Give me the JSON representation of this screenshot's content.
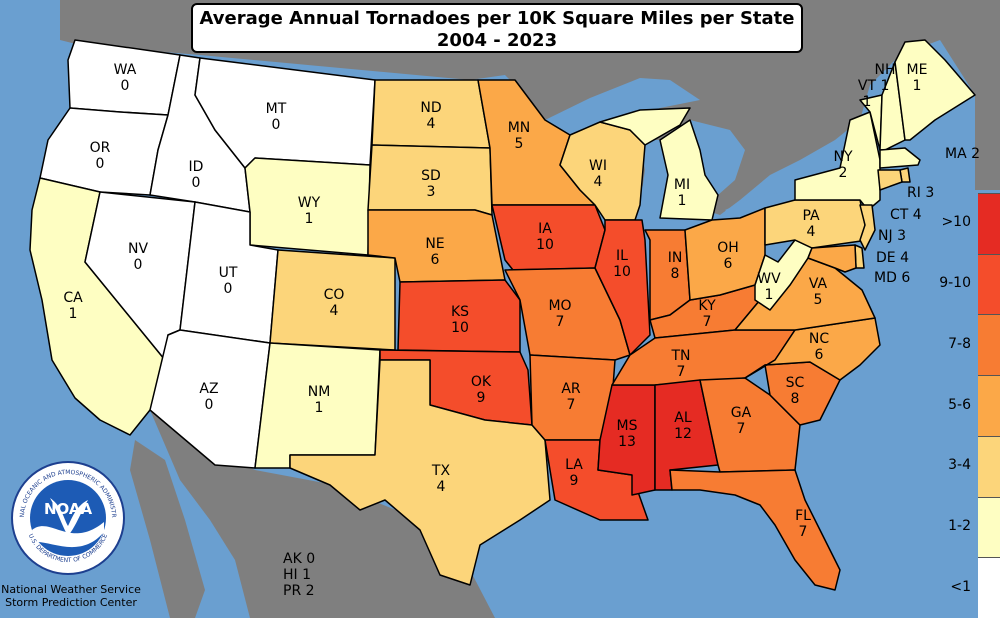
{
  "title": {
    "line1": "Average Annual Tornadoes per 10K Square Miles per State",
    "line2": "2004 - 2023"
  },
  "legend": [
    {
      "label": ">10",
      "color": "#e52b23"
    },
    {
      "label": "9-10",
      "color": "#f44d2b"
    },
    {
      "label": "7-8",
      "color": "#f77c33"
    },
    {
      "label": "5-6",
      "color": "#fba848"
    },
    {
      "label": "3-4",
      "color": "#fcd57a"
    },
    {
      "label": "1-2",
      "color": "#fefec2"
    },
    {
      "label": "<1",
      "color": "#ffffff"
    }
  ],
  "states": {
    "WA": {
      "abbr": "WA",
      "value": "0"
    },
    "OR": {
      "abbr": "OR",
      "value": "0"
    },
    "CA": {
      "abbr": "CA",
      "value": "1"
    },
    "ID": {
      "abbr": "ID",
      "value": "0"
    },
    "NV": {
      "abbr": "NV",
      "value": "0"
    },
    "MT": {
      "abbr": "MT",
      "value": "0"
    },
    "WY": {
      "abbr": "WY",
      "value": "1"
    },
    "UT": {
      "abbr": "UT",
      "value": "0"
    },
    "AZ": {
      "abbr": "AZ",
      "value": "0"
    },
    "CO": {
      "abbr": "CO",
      "value": "4"
    },
    "NM": {
      "abbr": "NM",
      "value": "1"
    },
    "ND": {
      "abbr": "ND",
      "value": "4"
    },
    "SD": {
      "abbr": "SD",
      "value": "3"
    },
    "NE": {
      "abbr": "NE",
      "value": "6"
    },
    "KS": {
      "abbr": "KS",
      "value": "10"
    },
    "OK": {
      "abbr": "OK",
      "value": "9"
    },
    "TX": {
      "abbr": "TX",
      "value": "4"
    },
    "MN": {
      "abbr": "MN",
      "value": "5"
    },
    "IA": {
      "abbr": "IA",
      "value": "10"
    },
    "MO": {
      "abbr": "MO",
      "value": "7"
    },
    "AR": {
      "abbr": "AR",
      "value": "7"
    },
    "LA": {
      "abbr": "LA",
      "value": "9"
    },
    "WI": {
      "abbr": "WI",
      "value": "4"
    },
    "IL": {
      "abbr": "IL",
      "value": "10"
    },
    "MS": {
      "abbr": "MS",
      "value": "13"
    },
    "MI": {
      "abbr": "MI",
      "value": "1"
    },
    "IN": {
      "abbr": "IN",
      "value": "8"
    },
    "KY": {
      "abbr": "KY",
      "value": "7"
    },
    "TN": {
      "abbr": "TN",
      "value": "7"
    },
    "AL": {
      "abbr": "AL",
      "value": "12"
    },
    "OH": {
      "abbr": "OH",
      "value": "6"
    },
    "GA": {
      "abbr": "GA",
      "value": "7"
    },
    "FL": {
      "abbr": "FL",
      "value": "7"
    },
    "SC": {
      "abbr": "SC",
      "value": "8"
    },
    "NC": {
      "abbr": "NC",
      "value": "6"
    },
    "VA": {
      "abbr": "VA",
      "value": "5"
    },
    "WV": {
      "abbr": "WV",
      "value": "1"
    },
    "PA": {
      "abbr": "PA",
      "value": "4"
    },
    "NY": {
      "abbr": "NY",
      "value": "2"
    },
    "VT": {
      "abbr": "VT",
      "value": "1"
    },
    "NH": {
      "abbr": "NH",
      "value": "1"
    },
    "ME": {
      "abbr": "ME",
      "value": "1"
    },
    "MA": {
      "abbr": "MA",
      "value": "2"
    },
    "RI": {
      "abbr": "RI",
      "value": "3"
    },
    "CT": {
      "abbr": "CT",
      "value": "4"
    },
    "NJ": {
      "abbr": "NJ",
      "value": "3"
    },
    "DE": {
      "abbr": "DE",
      "value": "4"
    },
    "MD": {
      "abbr": "MD",
      "value": "6"
    }
  },
  "territories": [
    "AK 0",
    "HI 1",
    "PR 2"
  ],
  "logo_text": {
    "name": "NOAA",
    "ring": "NATIONAL OCEANIC AND ATMOSPHERIC ADMINISTRATION",
    "ring_bottom": "U.S. DEPARTMENT OF COMMERCE"
  },
  "credit": {
    "line1": "National Weather Service",
    "line2": "Storm Prediction Center"
  },
  "colors": {
    "ocean": "#6a9fd0",
    "land_foreign": "#7f7f7f",
    "lakes": "#6a9fd0",
    "border": "#000000"
  }
}
